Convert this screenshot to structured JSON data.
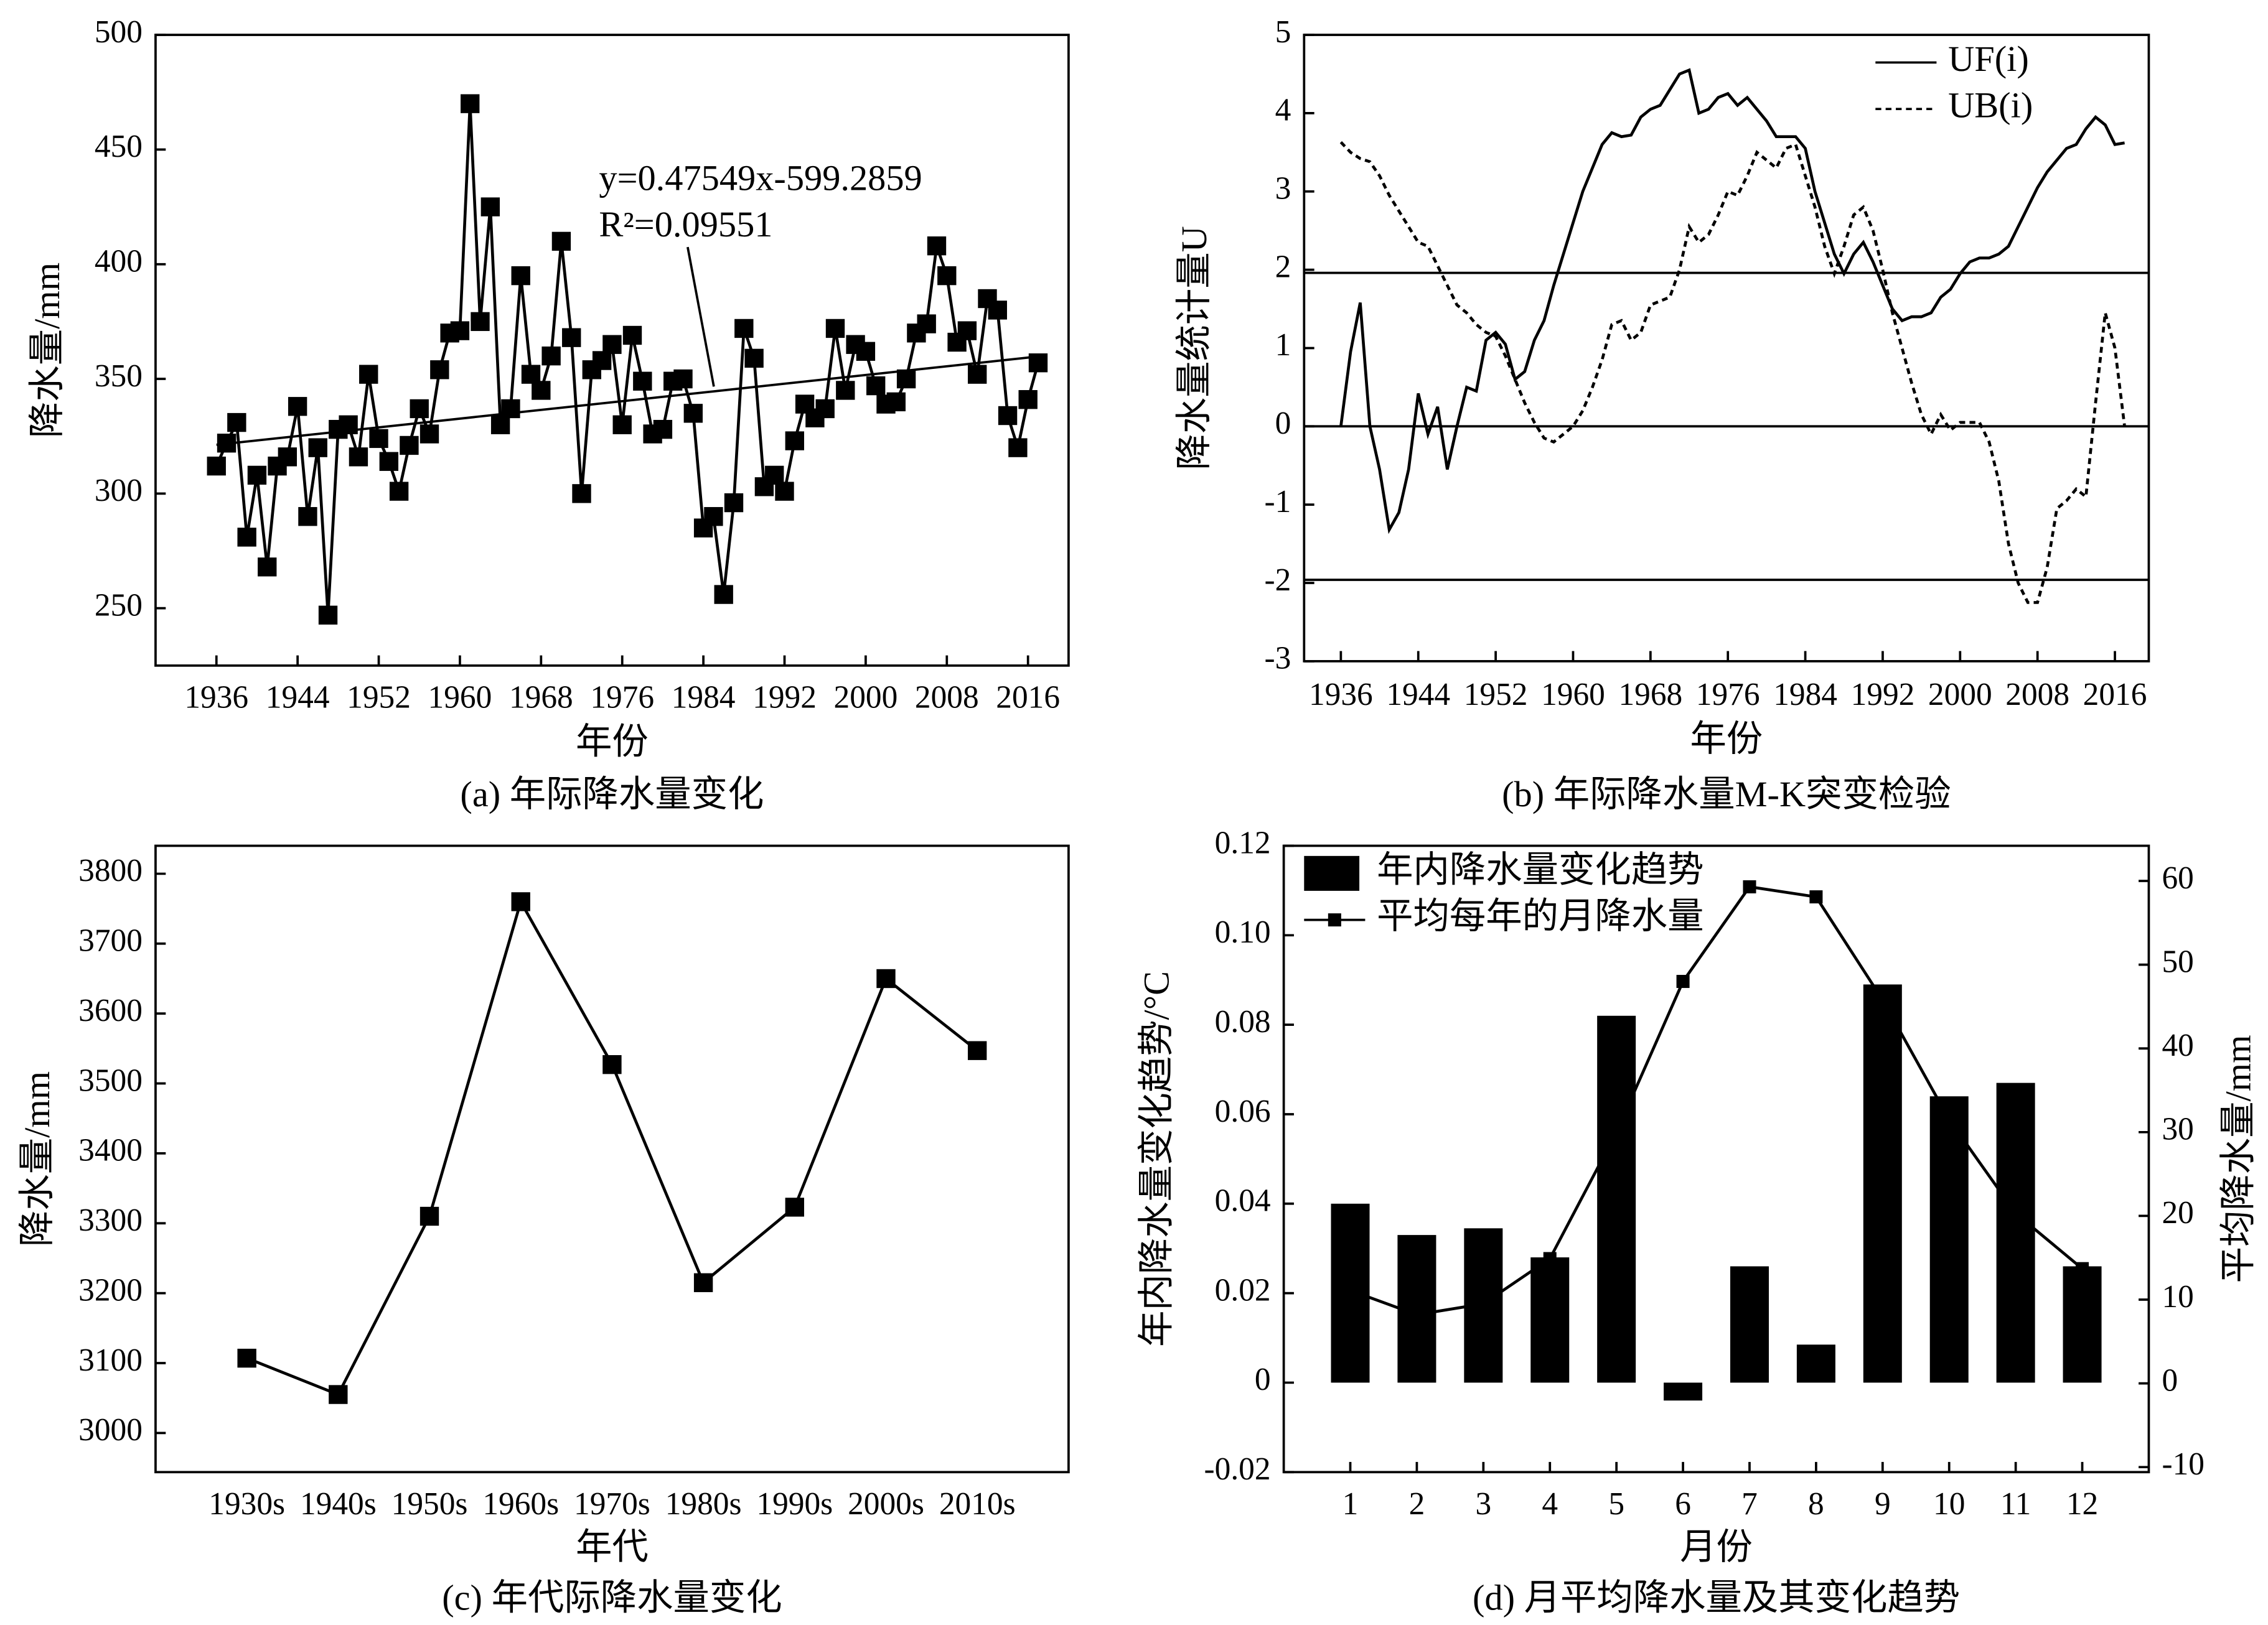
{
  "chart_data": [
    {
      "type": "line",
      "caption": "(a) 年际降水量变化",
      "xlabel": "年份",
      "ylabel": "降水量/mm",
      "color": "#000000",
      "marker": "square",
      "x": [
        1936,
        1937,
        1938,
        1939,
        1940,
        1941,
        1942,
        1943,
        1944,
        1945,
        1946,
        1947,
        1948,
        1949,
        1950,
        1951,
        1952,
        1953,
        1954,
        1955,
        1956,
        1957,
        1958,
        1959,
        1960,
        1961,
        1962,
        1963,
        1964,
        1965,
        1966,
        1967,
        1968,
        1969,
        1970,
        1971,
        1972,
        1973,
        1974,
        1975,
        1976,
        1977,
        1978,
        1979,
        1980,
        1981,
        1982,
        1983,
        1984,
        1985,
        1986,
        1987,
        1988,
        1989,
        1990,
        1991,
        1992,
        1993,
        1994,
        1995,
        1996,
        1997,
        1998,
        1999,
        2000,
        2001,
        2002,
        2003,
        2004,
        2005,
        2006,
        2007,
        2008,
        2009,
        2010,
        2011,
        2012,
        2013,
        2014,
        2015,
        2016,
        2017
      ],
      "series": [
        {
          "color": "#000000",
          "values": [
            312,
            322,
            331,
            281,
            308,
            268,
            312,
            316,
            338,
            290,
            320,
            247,
            328,
            330,
            316,
            352,
            324,
            314,
            301,
            321,
            337,
            326,
            354,
            370,
            371,
            470,
            375,
            425,
            330,
            337,
            395,
            352,
            345,
            360,
            410,
            368,
            300,
            354,
            358,
            365,
            330,
            369,
            349,
            326,
            328,
            349,
            350,
            335,
            285,
            290,
            256,
            296,
            372,
            359,
            303,
            308,
            301,
            323,
            339,
            333,
            337,
            372,
            345,
            365,
            362,
            347,
            339,
            340,
            350,
            370,
            374,
            408,
            395,
            366,
            371,
            352,
            385,
            380,
            334,
            320,
            341,
            357
          ]
        }
      ],
      "trendline": {
        "slope": 0.47549,
        "intercept": -599.2859,
        "label": "y=0.47549x-599.2859",
        "r2_label": "R²=0.09551"
      },
      "xlim": [
        1930,
        2020
      ],
      "xticks": [
        1936,
        1944,
        1952,
        1960,
        1968,
        1976,
        1984,
        1992,
        2000,
        2008,
        2016
      ],
      "ylim": [
        225,
        500
      ],
      "yticks": [
        250,
        300,
        350,
        400,
        450,
        500
      ]
    },
    {
      "type": "line",
      "caption": "(b) 年际降水量M-K突变检验",
      "xlabel": "年份",
      "ylabel": "降水量统计量U",
      "legend": "upper right",
      "x": [
        1936,
        1937,
        1938,
        1939,
        1940,
        1941,
        1942,
        1943,
        1944,
        1945,
        1946,
        1947,
        1948,
        1949,
        1950,
        1951,
        1952,
        1953,
        1954,
        1955,
        1956,
        1957,
        1958,
        1959,
        1960,
        1961,
        1962,
        1963,
        1964,
        1965,
        1966,
        1967,
        1968,
        1969,
        1970,
        1971,
        1972,
        1973,
        1974,
        1975,
        1976,
        1977,
        1978,
        1979,
        1980,
        1981,
        1982,
        1983,
        1984,
        1985,
        1986,
        1987,
        1988,
        1989,
        1990,
        1991,
        1992,
        1993,
        1994,
        1995,
        1996,
        1997,
        1998,
        1999,
        2000,
        2001,
        2002,
        2003,
        2004,
        2005,
        2006,
        2007,
        2008,
        2009,
        2010,
        2011,
        2012,
        2013,
        2014,
        2015,
        2016,
        2017
      ],
      "series": [
        {
          "name": "UF(i)",
          "color": "#000000",
          "dash": false,
          "values": [
            0,
            0.95,
            1.58,
            0,
            -0.55,
            -1.32,
            -1.1,
            -0.55,
            0.42,
            -0.1,
            0.25,
            -0.55,
            0,
            0.5,
            0.45,
            1.1,
            1.2,
            1.05,
            0.6,
            0.7,
            1.1,
            1.35,
            1.8,
            2.2,
            2.6,
            3.0,
            3.3,
            3.6,
            3.75,
            3.7,
            3.72,
            3.95,
            4.05,
            4.1,
            4.3,
            4.5,
            4.55,
            4.0,
            4.05,
            4.2,
            4.25,
            4.1,
            4.2,
            4.05,
            3.9,
            3.7,
            3.7,
            3.7,
            3.55,
            3.0,
            2.6,
            2.2,
            1.95,
            2.2,
            2.35,
            2.1,
            1.8,
            1.5,
            1.35,
            1.4,
            1.4,
            1.45,
            1.65,
            1.75,
            1.95,
            2.1,
            2.15,
            2.15,
            2.2,
            2.3,
            2.55,
            2.8,
            3.05,
            3.25,
            3.4,
            3.55,
            3.6,
            3.8,
            3.95,
            3.85,
            3.6,
            3.62
          ]
        },
        {
          "name": "UB(i)",
          "color": "#000000",
          "dash": true,
          "values": [
            3.63,
            3.5,
            3.42,
            3.38,
            3.2,
            2.95,
            2.75,
            2.55,
            2.35,
            2.3,
            2.05,
            1.8,
            1.55,
            1.45,
            1.3,
            1.2,
            1.15,
            0.9,
            0.6,
            0.3,
            0.05,
            -0.15,
            -0.2,
            -0.1,
            0,
            0.2,
            0.5,
            0.85,
            1.3,
            1.35,
            1.1,
            1.2,
            1.55,
            1.6,
            1.65,
            2.0,
            2.55,
            2.35,
            2.45,
            2.7,
            3.0,
            2.95,
            3.2,
            3.5,
            3.4,
            3.3,
            3.55,
            3.6,
            3.2,
            2.8,
            2.3,
            1.95,
            2.3,
            2.7,
            2.8,
            2.5,
            2.0,
            1.45,
            1.0,
            0.55,
            0.15,
            -0.1,
            0.15,
            -0.05,
            0.05,
            0.05,
            0.05,
            -0.2,
            -0.7,
            -1.5,
            -2.0,
            -2.25,
            -2.25,
            -1.8,
            -1.05,
            -0.95,
            -0.8,
            -0.9,
            0.3,
            1.45,
            1.0,
            0
          ]
        }
      ],
      "hlines": [
        1.96,
        0,
        -1.96
      ],
      "xlim": [
        1932.2,
        2019.5
      ],
      "xticks": [
        1936,
        1944,
        1952,
        1960,
        1968,
        1976,
        1984,
        1992,
        2000,
        2008,
        2016
      ],
      "ylim": [
        -3,
        5
      ],
      "yticks": [
        -3,
        -2,
        -1,
        0,
        1,
        2,
        3,
        4,
        5
      ]
    },
    {
      "type": "line",
      "caption": "(c) 年代际降水量变化",
      "xlabel": "年代",
      "ylabel": "降水量/mm",
      "marker": "square",
      "categories": [
        "1930s",
        "1940s",
        "1950s",
        "1960s",
        "1970s",
        "1980s",
        "1990s",
        "2000s",
        "2010s"
      ],
      "series": [
        {
          "color": "#000000",
          "values": [
            3107,
            3055,
            3310,
            3760,
            3527,
            3215,
            3323,
            3650,
            3547
          ]
        }
      ],
      "ylim": [
        2944,
        3840
      ],
      "yticks": [
        3000,
        3100,
        3200,
        3300,
        3400,
        3500,
        3600,
        3700,
        3800
      ]
    },
    {
      "type": "bar",
      "caption": "(d) 月平均降水量及其变化趋势",
      "xlabel": "月份",
      "ylabel": "年内降水量变化趋势/°C",
      "y2label": "平均降水量/mm",
      "legend": "upper left",
      "x": [
        1,
        2,
        3,
        4,
        5,
        6,
        7,
        8,
        9,
        10,
        11,
        12
      ],
      "series": [
        {
          "name": "年内降水量变化趋势",
          "type": "bar",
          "color": "#000000",
          "values": [
            0.04,
            0.033,
            0.0345,
            0.028,
            0.082,
            -0.004,
            0.026,
            0.0085,
            0.089,
            0.064,
            0.067,
            0.026
          ]
        },
        {
          "name": "平均每年的月降水量",
          "type": "line",
          "axis": "y2",
          "marker": "square",
          "color": "#000000",
          "values": [
            11.1,
            8.2,
            9.5,
            14.9,
            30,
            48,
            59.3,
            58.1,
            45.8,
            31.5,
            20.3,
            13.7
          ]
        }
      ],
      "xlim": [
        0,
        13
      ],
      "xticks": [
        1,
        2,
        3,
        4,
        5,
        6,
        7,
        8,
        9,
        10,
        11,
        12
      ],
      "ylim": [
        -0.02,
        0.12
      ],
      "yticks": [
        -0.02,
        0,
        0.02,
        0.04,
        0.06,
        0.08,
        {
          "value": 0.1,
          "label": "0.10"
        },
        0.12
      ],
      "y2lim": [
        -10.6,
        64.2
      ],
      "y2ticks": [
        -10,
        0,
        10,
        20,
        30,
        40,
        50,
        60
      ]
    }
  ]
}
